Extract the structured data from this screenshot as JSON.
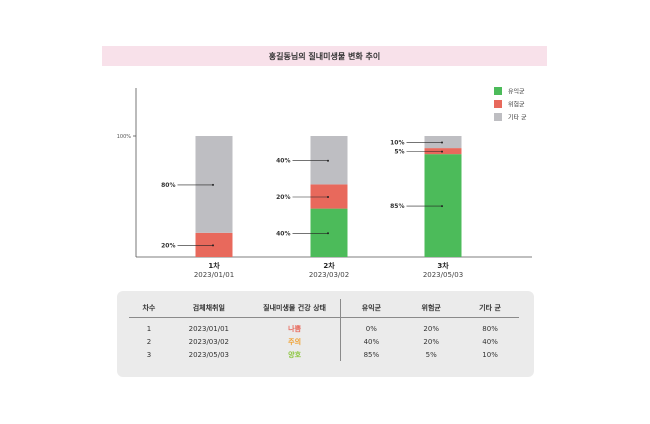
{
  "title": "홍길동님의 질내미생물 변화 추이",
  "colors": {
    "good": "#4cbb5a",
    "harmful": "#e8695c",
    "other": "#bebec2"
  },
  "chart_data": {
    "type": "bar",
    "stacked": true,
    "categories": [
      "1차",
      "2차",
      "3차"
    ],
    "dates": [
      "2023/01/01",
      "2023/03/02",
      "2023/05/03"
    ],
    "ytick": "100%",
    "ylim": [
      0,
      100
    ],
    "legend_position": "top-right",
    "series": [
      {
        "name": "유익균",
        "color": "#4cbb5a",
        "values": [
          0,
          40,
          85
        ],
        "labels": [
          "",
          "40%",
          "85%"
        ]
      },
      {
        "name": "위험균",
        "color": "#e8695c",
        "values": [
          20,
          20,
          5
        ],
        "labels": [
          "20%",
          "20%",
          "5%"
        ]
      },
      {
        "name": "기타 균",
        "color": "#bebec2",
        "values": [
          80,
          40,
          10
        ],
        "labels": [
          "80%",
          "40%",
          "10%"
        ]
      }
    ]
  },
  "table": {
    "headers": [
      "차수",
      "검체채취일",
      "질내미생물 건강 상태",
      "유익균",
      "위험균",
      "기타 균"
    ],
    "rows": [
      {
        "round": "1",
        "date": "2023/01/01",
        "status": "나쁨",
        "status_color": "#e8695c",
        "good": "0%",
        "harmful": "20%",
        "other": "80%"
      },
      {
        "round": "2",
        "date": "2023/03/02",
        "status": "주의",
        "status_color": "#f0a030",
        "good": "40%",
        "harmful": "20%",
        "other": "40%"
      },
      {
        "round": "3",
        "date": "2023/05/03",
        "status": "양호",
        "status_color": "#8cc63f",
        "good": "85%",
        "harmful": "5%",
        "other": "10%"
      }
    ]
  }
}
